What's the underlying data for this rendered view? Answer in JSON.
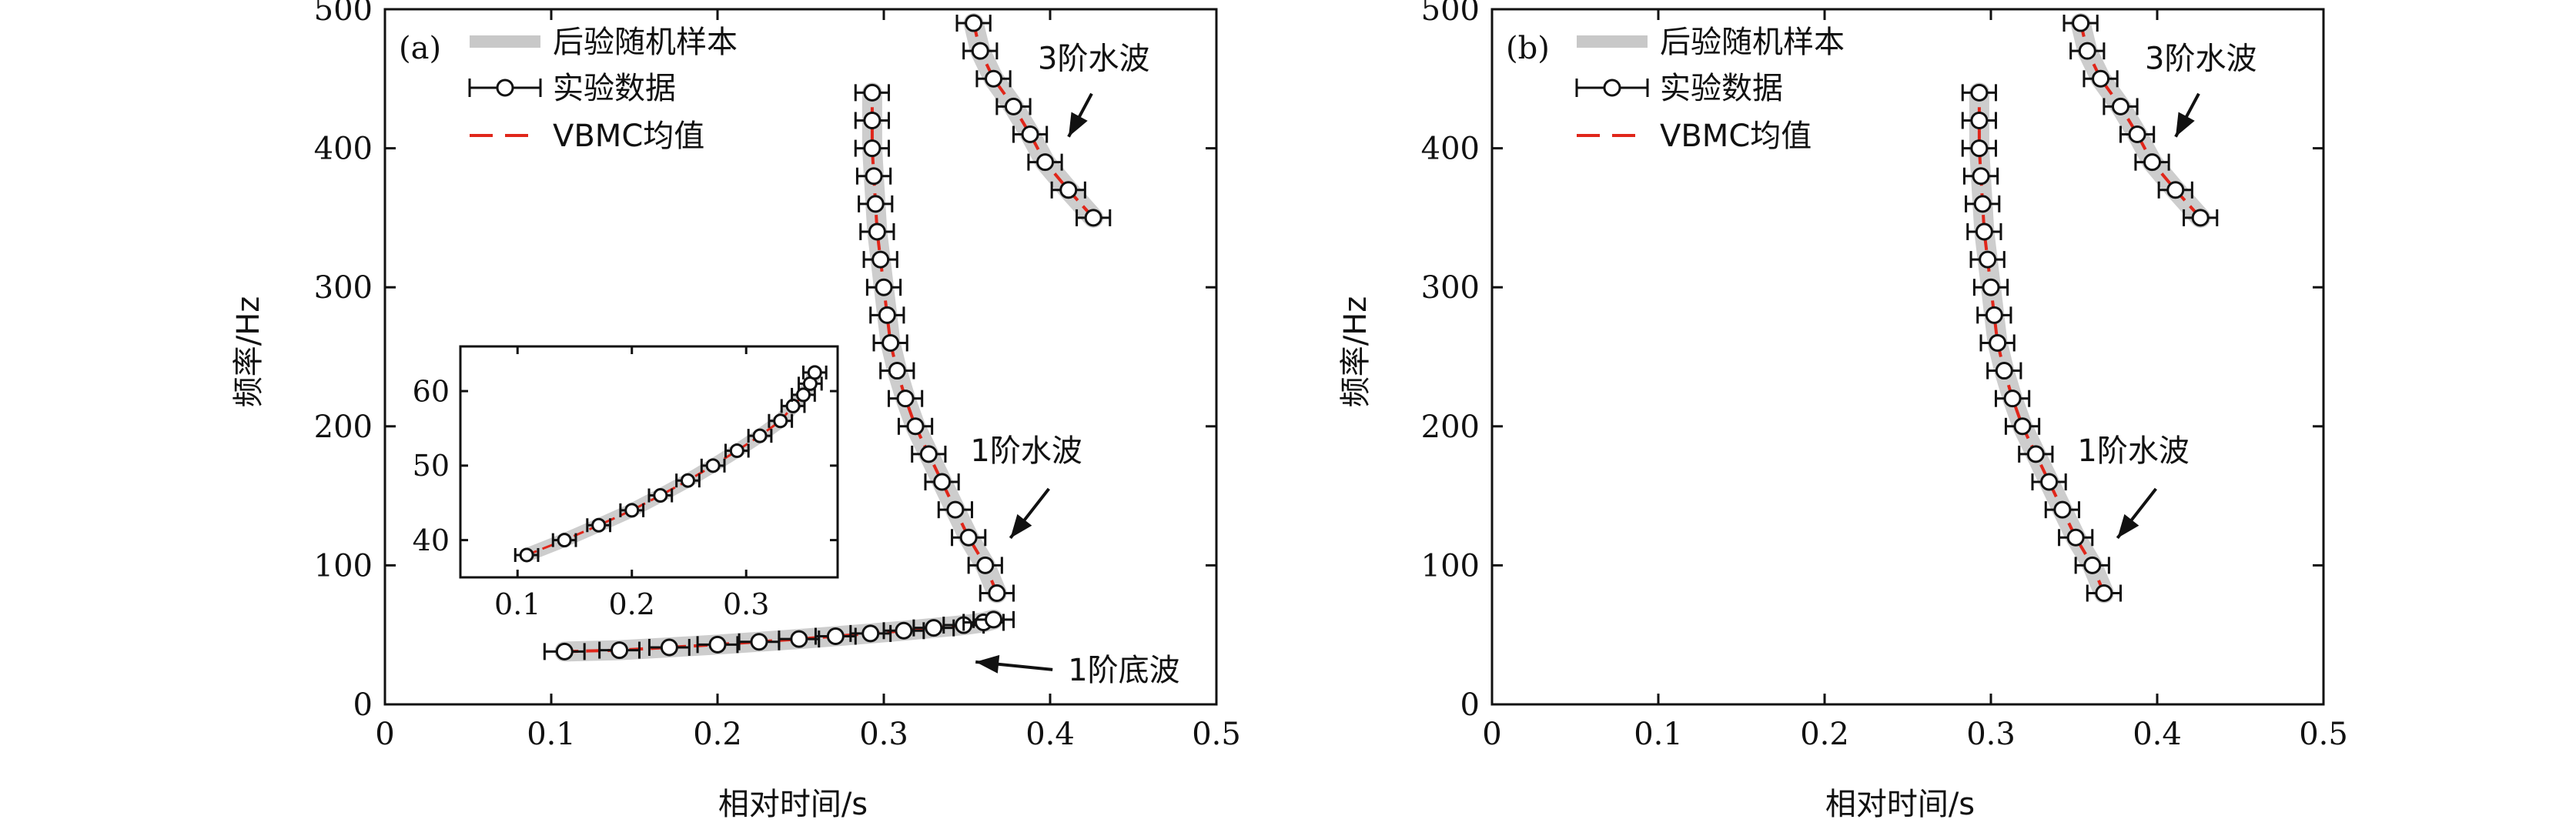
{
  "labels": {
    "xlabel": "相对时间/s",
    "ylabel": "频率/Hz"
  },
  "legend": {
    "posterior_samples": "后验随机样本",
    "experimental_data": "实验数据",
    "vbmc_mean": "VBMC均值"
  },
  "colors": {
    "samples": "#c8c8c8",
    "data": "#111111",
    "mean": "#e0261a",
    "axis": "#111111"
  },
  "chart_data": [
    {
      "type": "scatter",
      "panel_label": "(a)",
      "xlim": [
        0,
        0.5
      ],
      "ylim": [
        0,
        500
      ],
      "xticks": [
        "0",
        "0.1",
        "0.2",
        "0.3",
        "0.4",
        "0.5"
      ],
      "yticks": [
        "0",
        "100",
        "200",
        "300",
        "400",
        "500"
      ],
      "legend_position": "top-left",
      "grid": false,
      "series": [
        {
          "name": "1阶底波",
          "x": [
            0.108,
            0.141,
            0.171,
            0.2,
            0.225,
            0.249,
            0.271,
            0.292,
            0.312,
            0.33,
            0.348,
            0.36,
            0.366
          ],
          "y": [
            38,
            39,
            41,
            43,
            45,
            47,
            49,
            51,
            53,
            55,
            57,
            59,
            61
          ],
          "xerr": 0.012
        },
        {
          "name": "1阶水波",
          "x": [
            0.368,
            0.361,
            0.351,
            0.343,
            0.335,
            0.327,
            0.319,
            0.313,
            0.308,
            0.304,
            0.302,
            0.3,
            0.298,
            0.296,
            0.295,
            0.294,
            0.293,
            0.293,
            0.293
          ],
          "y": [
            80,
            100,
            120,
            140,
            160,
            180,
            200,
            220,
            240,
            260,
            280,
            300,
            320,
            340,
            360,
            380,
            400,
            420,
            440
          ],
          "xerr": 0.01
        },
        {
          "name": "3阶水波",
          "x": [
            0.354,
            0.358,
            0.366,
            0.378,
            0.388,
            0.397,
            0.411,
            0.426
          ],
          "y": [
            490,
            470,
            450,
            430,
            410,
            390,
            370,
            350
          ],
          "xerr": 0.01
        }
      ],
      "annotations": [
        {
          "text": "3阶水波",
          "x": 0.425,
          "y": 457
        },
        {
          "text": "1阶水波",
          "x": 0.39,
          "y": 175
        },
        {
          "text": "1阶底波",
          "x": 0.42,
          "y": 25
        }
      ],
      "inset": {
        "xlim": [
          0.05,
          0.38
        ],
        "ylim": [
          35,
          66
        ],
        "xticks": [
          "0.1",
          "0.2",
          "0.3"
        ],
        "yticks": [
          "40",
          "50",
          "60"
        ],
        "x": [
          0.108,
          0.141,
          0.171,
          0.2,
          0.225,
          0.249,
          0.271,
          0.292,
          0.312,
          0.33,
          0.341,
          0.35,
          0.356,
          0.36
        ],
        "y": [
          38,
          40,
          42,
          44,
          46,
          48,
          50,
          52,
          54,
          56,
          58,
          59.5,
          61,
          62.5
        ],
        "xerr": 0.01
      }
    },
    {
      "type": "scatter",
      "panel_label": "(b)",
      "xlim": [
        0,
        0.5
      ],
      "ylim": [
        0,
        500
      ],
      "xticks": [
        "0",
        "0.1",
        "0.2",
        "0.3",
        "0.4",
        "0.5"
      ],
      "yticks": [
        "0",
        "100",
        "200",
        "300",
        "400",
        "500"
      ],
      "legend_position": "top-left",
      "grid": false,
      "series": [
        {
          "name": "1阶水波",
          "x": [
            0.368,
            0.361,
            0.351,
            0.343,
            0.335,
            0.327,
            0.319,
            0.313,
            0.308,
            0.304,
            0.302,
            0.3,
            0.298,
            0.296,
            0.295,
            0.294,
            0.293,
            0.293,
            0.293
          ],
          "y": [
            80,
            100,
            120,
            140,
            160,
            180,
            200,
            220,
            240,
            260,
            280,
            300,
            320,
            340,
            360,
            380,
            400,
            420,
            440
          ],
          "xerr": 0.01
        },
        {
          "name": "3阶水波",
          "x": [
            0.354,
            0.358,
            0.366,
            0.378,
            0.388,
            0.397,
            0.411,
            0.426
          ],
          "y": [
            490,
            470,
            450,
            430,
            410,
            390,
            370,
            350
          ],
          "xerr": 0.01
        }
      ],
      "annotations": [
        {
          "text": "3阶水波",
          "x": 0.425,
          "y": 457
        },
        {
          "text": "1阶水波",
          "x": 0.39,
          "y": 175
        }
      ]
    }
  ]
}
